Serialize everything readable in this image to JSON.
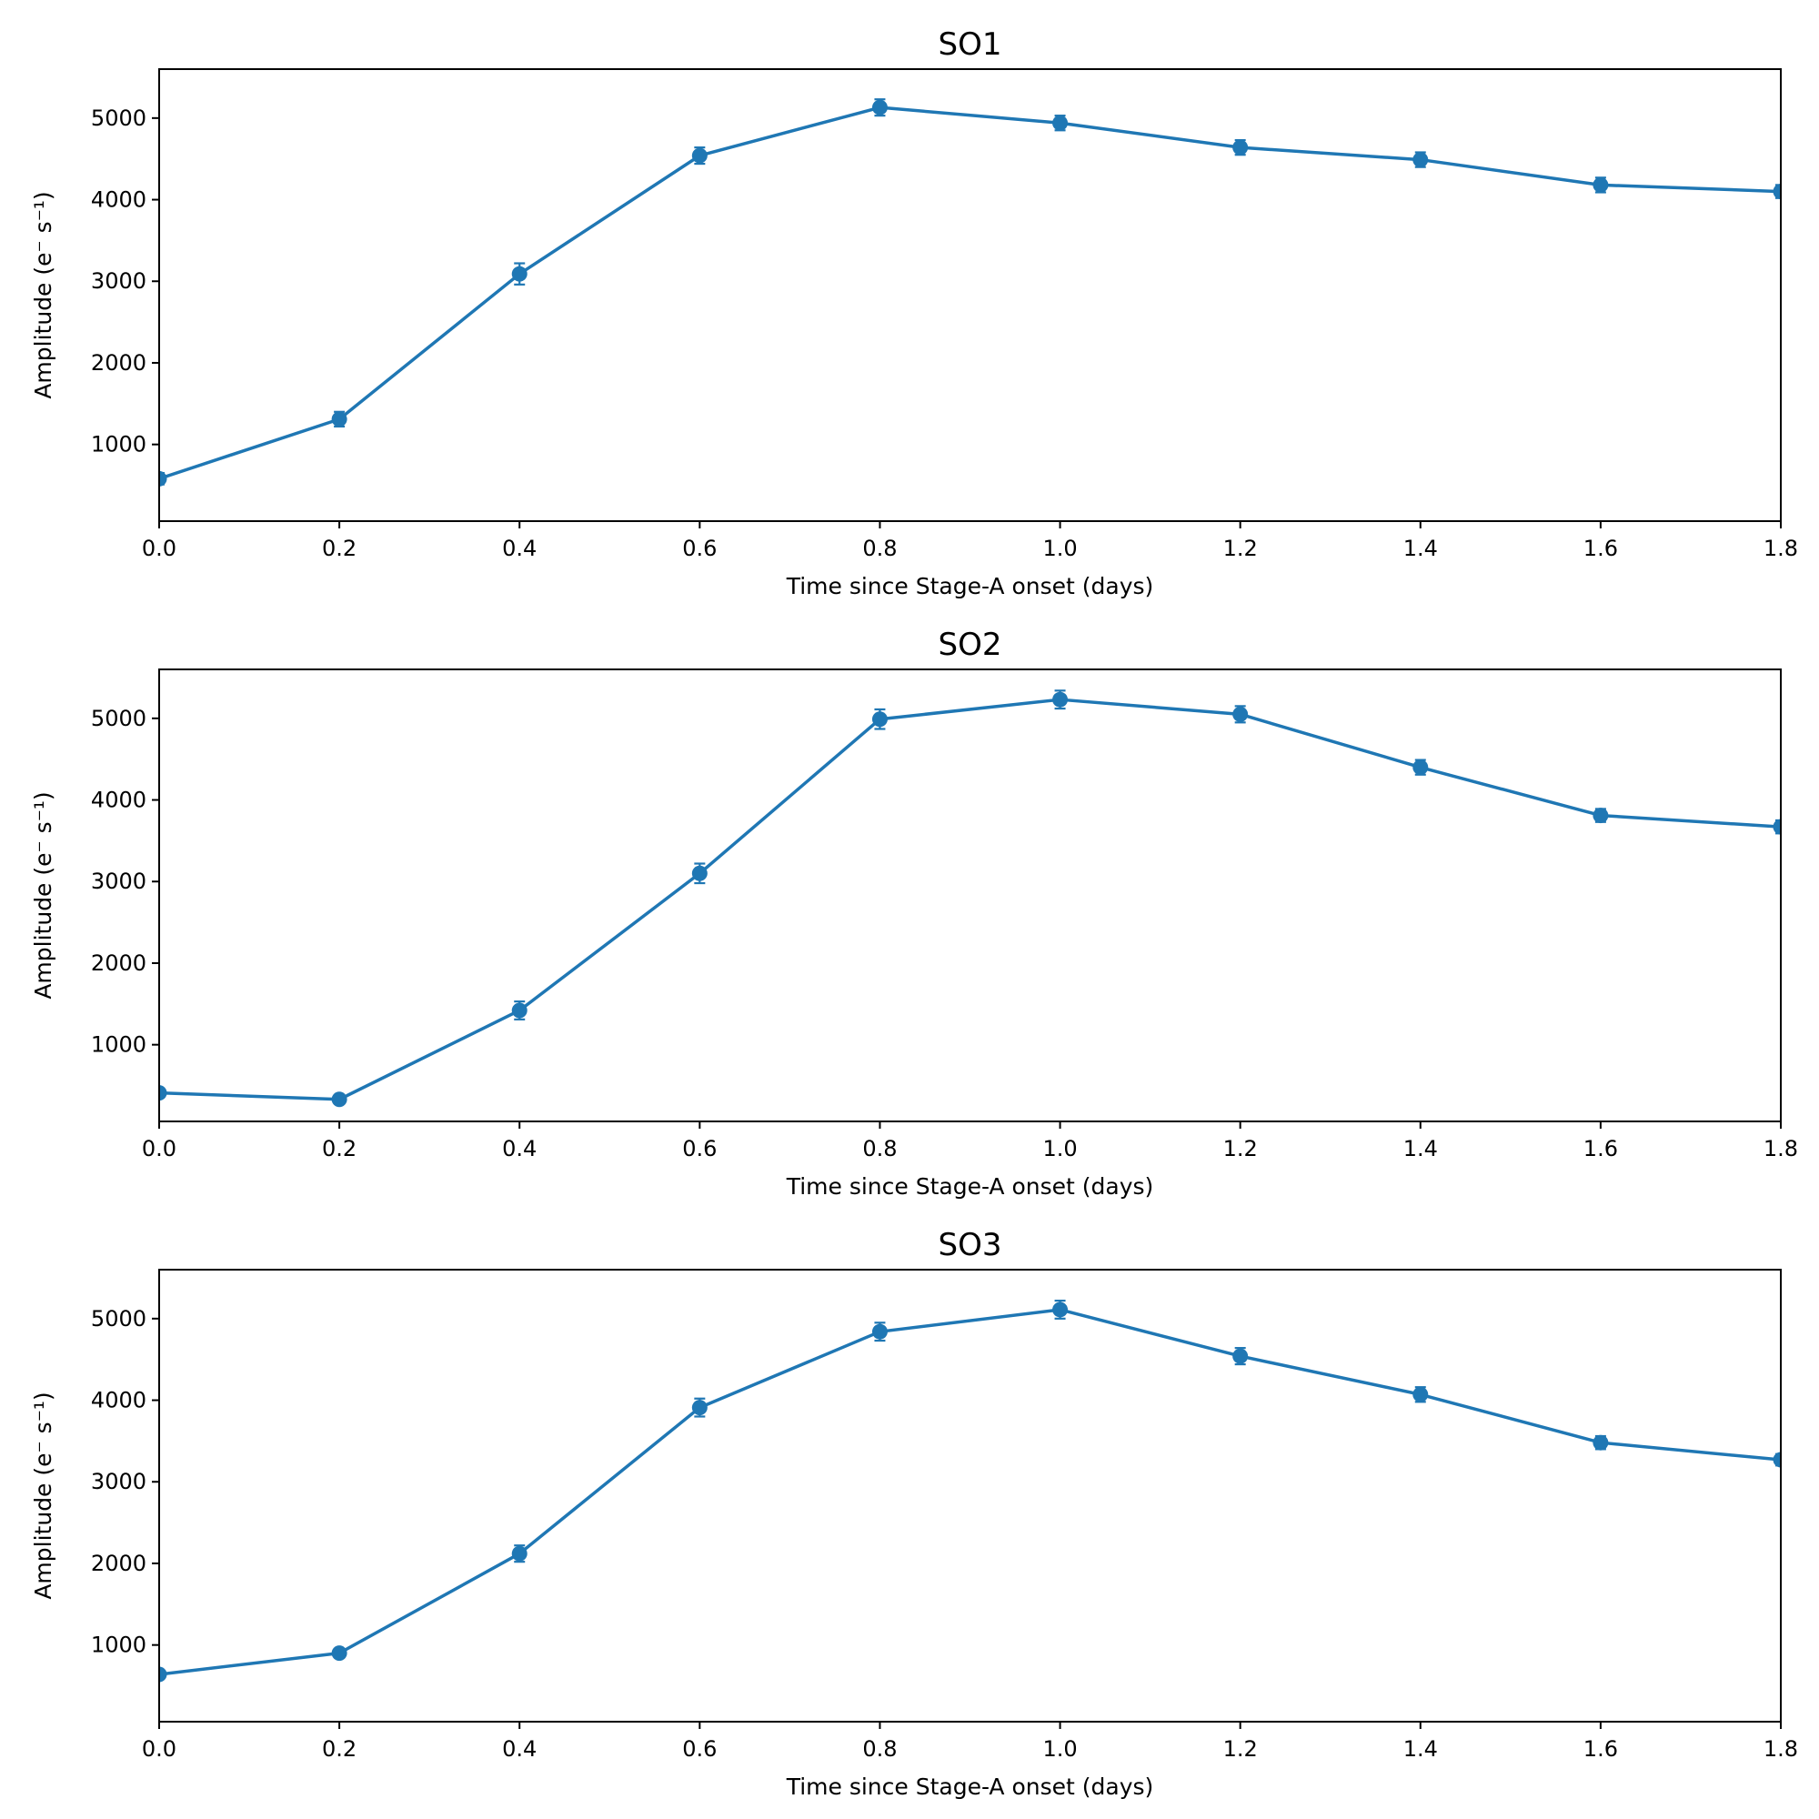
{
  "chart_data": [
    {
      "type": "line",
      "title": "SO1",
      "xlabel": "Time since Stage-A onset (days)",
      "ylabel": "Amplitude (e⁻ s⁻¹)",
      "x": [
        0.0,
        0.2,
        0.4,
        0.6,
        0.8,
        1.0,
        1.2,
        1.4,
        1.6,
        1.8
      ],
      "series": [
        {
          "name": "SO1",
          "values": [
            580,
            1310,
            3090,
            4540,
            5130,
            4940,
            4640,
            4490,
            4180,
            4100
          ],
          "errors": [
            70,
            90,
            130,
            100,
            100,
            90,
            90,
            90,
            90,
            80
          ]
        }
      ],
      "xlim": [
        0.0,
        1.8
      ],
      "ylim": [
        60,
        5600
      ],
      "xticks": [
        0.0,
        0.2,
        0.4,
        0.6,
        0.8,
        1.0,
        1.2,
        1.4,
        1.6,
        1.8
      ],
      "xtick_labels": [
        "0.0",
        "0.2",
        "0.4",
        "0.6",
        "0.8",
        "1.0",
        "1.2",
        "1.4",
        "1.6",
        "1.8"
      ],
      "yticks": [
        1000,
        2000,
        3000,
        4000,
        5000
      ],
      "ytick_labels": [
        "1000",
        "2000",
        "3000",
        "4000",
        "5000"
      ],
      "grid": false,
      "color": "#1f77b4"
    },
    {
      "type": "line",
      "title": "SO2",
      "xlabel": "Time since Stage-A onset (days)",
      "ylabel": "Amplitude (e⁻ s⁻¹)",
      "x": [
        0.0,
        0.2,
        0.4,
        0.6,
        0.8,
        1.0,
        1.2,
        1.4,
        1.6,
        1.8
      ],
      "series": [
        {
          "name": "SO2",
          "values": [
            410,
            330,
            1420,
            3100,
            4990,
            5230,
            5050,
            4400,
            3810,
            3670
          ],
          "errors": [
            50,
            50,
            110,
            120,
            120,
            110,
            100,
            90,
            80,
            80
          ]
        }
      ],
      "xlim": [
        0.0,
        1.8
      ],
      "ylim": [
        60,
        5600
      ],
      "xticks": [
        0.0,
        0.2,
        0.4,
        0.6,
        0.8,
        1.0,
        1.2,
        1.4,
        1.6,
        1.8
      ],
      "xtick_labels": [
        "0.0",
        "0.2",
        "0.4",
        "0.6",
        "0.8",
        "1.0",
        "1.2",
        "1.4",
        "1.6",
        "1.8"
      ],
      "yticks": [
        1000,
        2000,
        3000,
        4000,
        5000
      ],
      "ytick_labels": [
        "1000",
        "2000",
        "3000",
        "4000",
        "5000"
      ],
      "grid": false,
      "color": "#1f77b4"
    },
    {
      "type": "line",
      "title": "SO3",
      "xlabel": "Time since Stage-A onset (days)",
      "ylabel": "Amplitude (e⁻ s⁻¹)",
      "x": [
        0.0,
        0.2,
        0.4,
        0.6,
        0.8,
        1.0,
        1.2,
        1.4,
        1.6,
        1.8
      ],
      "series": [
        {
          "name": "SO3",
          "values": [
            640,
            900,
            2120,
            3910,
            4840,
            5110,
            4540,
            4070,
            3480,
            3270
          ],
          "errors": [
            50,
            50,
            100,
            110,
            110,
            110,
            100,
            90,
            80,
            70
          ]
        }
      ],
      "xlim": [
        0.0,
        1.8
      ],
      "ylim": [
        60,
        5600
      ],
      "xticks": [
        0.0,
        0.2,
        0.4,
        0.6,
        0.8,
        1.0,
        1.2,
        1.4,
        1.6,
        1.8
      ],
      "xtick_labels": [
        "0.0",
        "0.2",
        "0.4",
        "0.6",
        "0.8",
        "1.0",
        "1.2",
        "1.4",
        "1.6",
        "1.8"
      ],
      "yticks": [
        1000,
        2000,
        3000,
        4000,
        5000
      ],
      "ytick_labels": [
        "1000",
        "2000",
        "3000",
        "4000",
        "5000"
      ],
      "grid": false,
      "color": "#1f77b4"
    }
  ]
}
